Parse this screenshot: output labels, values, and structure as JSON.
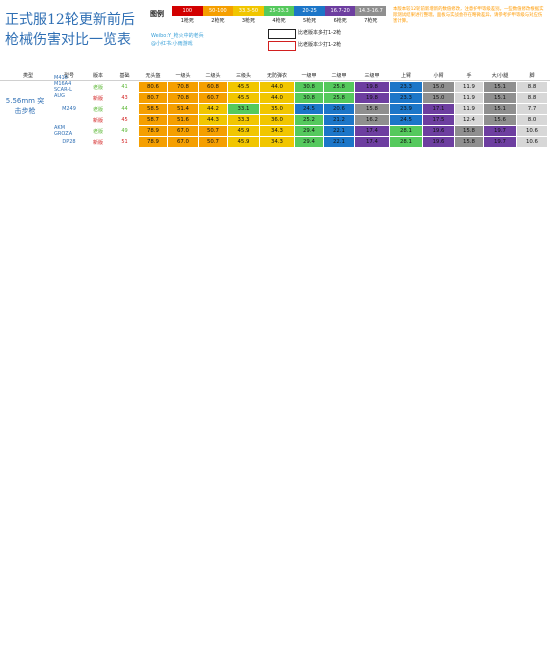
{
  "title": "正式服12轮更新前后\n枪械伤害对比一览表",
  "legend": {
    "label": "图例",
    "bands": [
      {
        "text": "100",
        "color": "#d20000"
      },
      {
        "text": "50-100",
        "color": "#f59f00"
      },
      {
        "text": "33.3-50",
        "color": "#f1c600"
      },
      {
        "text": "25-33.3",
        "color": "#55c95d"
      },
      {
        "text": "20-25",
        "color": "#1c76c8"
      },
      {
        "text": "16.7-20",
        "color": "#6d3ea0"
      },
      {
        "text": "14.3-16.7",
        "color": "#8f8f8f"
      }
    ],
    "deaths": [
      "1枪死",
      "2枪死",
      "3枪死",
      "4枪死",
      "5枪死",
      "6枪死",
      "7枪死"
    ],
    "watermark": [
      "Weibo:Y_枪火中的老兵",
      "@小红书:小雨游戏"
    ],
    "compare_black": "比老版本多打1-2枪",
    "compare_red": "比老版本少打1-2枪"
  },
  "notes": "本版本较12轮前新增新的数值修改，注意护甲等级差别。一些数值修改根据实际测试结果进行整理。面板与实战会存在略微差异，请参考护甲等级与对应伤害计算。",
  "sections": [
    {
      "category": "5.56mm\n突击步枪",
      "top": 66,
      "columns": [
        "类型",
        "型号",
        "版本",
        "基础",
        "无头盔",
        "一级头",
        "二级头",
        "三级头",
        "无防弹衣",
        "一级甲",
        "二级甲",
        "三级甲",
        "上臂",
        "小臂",
        "手",
        "大/小腿",
        "脚"
      ],
      "rows": [
        {
          "gun": "M416\nM16A4\nSCAR-L\nAUG",
          "version": "老版",
          "base": "41",
          "values": [
            "80.6",
            "70.8",
            "60.8",
            "45.5",
            "44.0",
            "30.8",
            "25.8",
            "19.8",
            "23.3",
            "15.0",
            "11.9",
            "15.1",
            "8.8"
          ]
        },
        {
          "gun": "",
          "version": "新版",
          "base": "43",
          "values": [
            "80.7",
            "70.8",
            "60.7",
            "45.5",
            "44.0",
            "30.8",
            "25.8",
            "19.8",
            "23.3",
            "15.0",
            "11.9",
            "15.1",
            "8.8"
          ]
        },
        {
          "gun": "M249",
          "version": "老版",
          "base": "44",
          "values": [
            "58.5",
            "51.4",
            "44.2",
            "33.1",
            "35.0",
            "24.5",
            "20.6",
            "15.8",
            "23.9",
            "17.1",
            "11.9",
            "15.1",
            "7.7"
          ]
        },
        {
          "gun": "",
          "version": "新版",
          "base": "45",
          "values": [
            "58.7",
            "51.6",
            "44.3",
            "33.3",
            "36.0",
            "25.2",
            "21.2",
            "16.2",
            "24.5",
            "17.5",
            "12.4",
            "15.6",
            "8.0"
          ]
        },
        {
          "gun": "AKM\nGROZA",
          "version": "老版",
          "base": "49",
          "values": [
            "78.9",
            "67.0",
            "50.7",
            "45.9",
            "34.3",
            "29.4",
            "22.1",
            "17.4",
            "28.1",
            "19.6",
            "15.8",
            "19.7",
            "10.6"
          ]
        },
        {
          "gun": "DP28",
          "version": "新版",
          "base": "51",
          "values": [
            "78.9",
            "67.0",
            "50.7",
            "45.9",
            "34.3",
            "29.4",
            "22.1",
            "17.4",
            "28.1",
            "19.6",
            "15.8",
            "19.7",
            "10.6"
          ]
        }
      ]
    }
  ]
}
